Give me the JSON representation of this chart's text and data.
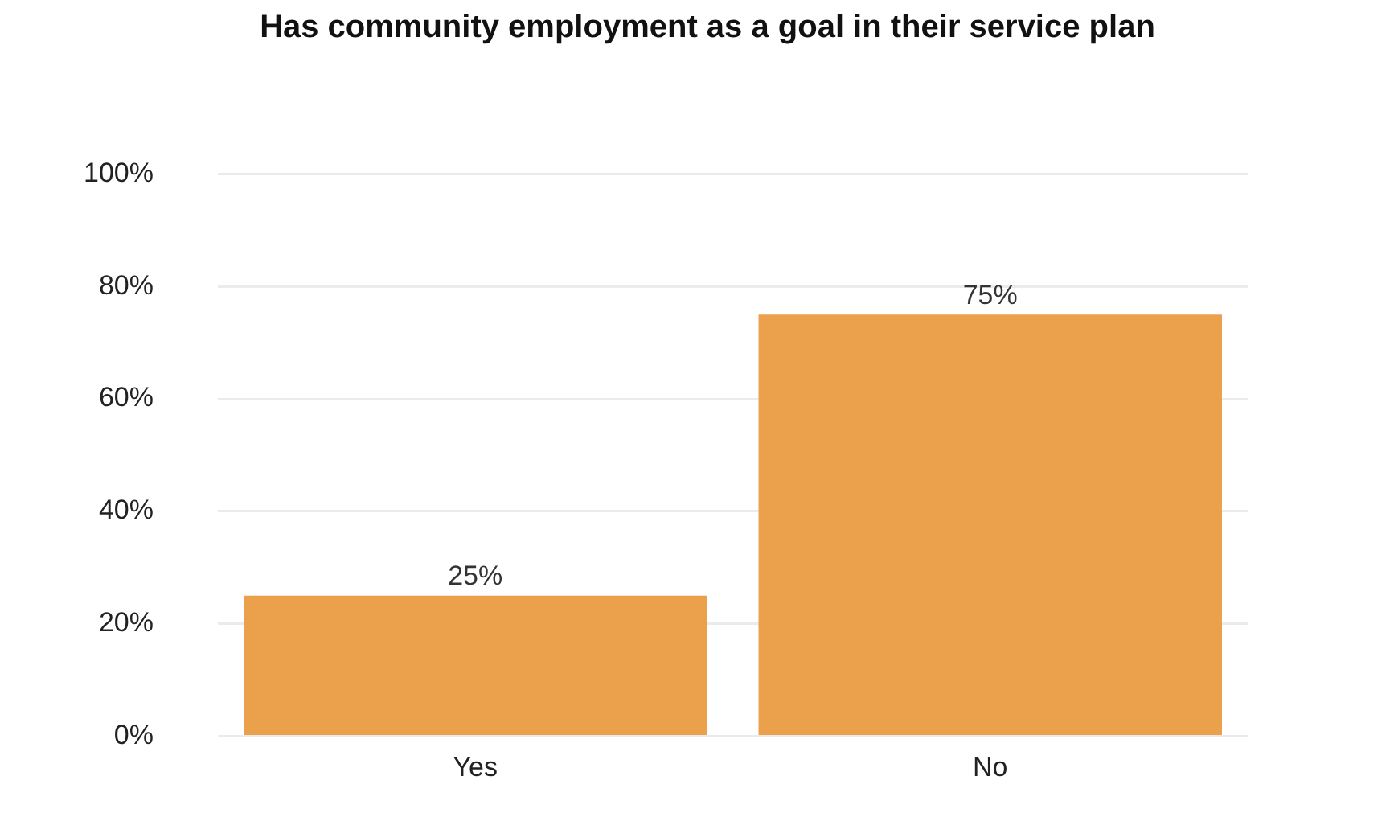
{
  "chart_data": {
    "type": "bar",
    "title": "Has community employment as a goal in their service plan",
    "categories": [
      "Yes",
      "No"
    ],
    "values": [
      25,
      75
    ],
    "color": "#eba04b",
    "value_labels": [
      "25%",
      "75%"
    ],
    "ylim": [
      0,
      100
    ],
    "yticks": [
      {
        "value": 0,
        "label": "0%"
      },
      {
        "value": 20,
        "label": "20%"
      },
      {
        "value": 40,
        "label": "40%"
      },
      {
        "value": 60,
        "label": "60%"
      },
      {
        "value": 80,
        "label": "80%"
      },
      {
        "value": 100,
        "label": "100%"
      }
    ],
    "grid": "y"
  }
}
